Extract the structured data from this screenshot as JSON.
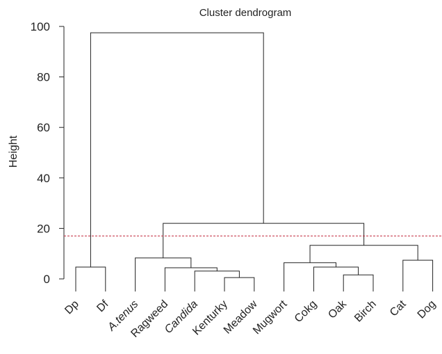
{
  "chart_data": {
    "type": "dendrogram",
    "title": "Cluster dendrogram",
    "ylabel": "Height",
    "ylim": [
      0,
      100
    ],
    "yticks": [
      0,
      20,
      40,
      60,
      80,
      100
    ],
    "leaves": [
      {
        "label": "Dp",
        "italic": false
      },
      {
        "label": "Df",
        "italic": false
      },
      {
        "label": "A.tenus",
        "italic": true
      },
      {
        "label": "Ragweed",
        "italic": false
      },
      {
        "label": "Candida",
        "italic": true
      },
      {
        "label": "Kenturky",
        "italic": false
      },
      {
        "label": "Meadow",
        "italic": false
      },
      {
        "label": "Mugwort",
        "italic": false
      },
      {
        "label": "Cokg",
        "italic": false
      },
      {
        "label": "Oak",
        "italic": false
      },
      {
        "label": "Birch",
        "italic": false
      },
      {
        "label": "Cat",
        "italic": false
      },
      {
        "label": "Dog",
        "italic": false
      }
    ],
    "merges": [
      {
        "left": "L0",
        "right": "L1",
        "height": 4.7
      },
      {
        "left": "L5",
        "right": "L6",
        "height": 0.5
      },
      {
        "left": "L4",
        "right": "M1",
        "height": 3.1
      },
      {
        "left": "L3",
        "right": "M2",
        "height": 4.4
      },
      {
        "left": "L2",
        "right": "M3",
        "height": 8.3
      },
      {
        "left": "L9",
        "right": "L10",
        "height": 1.6
      },
      {
        "left": "L8",
        "right": "M5",
        "height": 4.7
      },
      {
        "left": "L7",
        "right": "M6",
        "height": 6.4
      },
      {
        "left": "L11",
        "right": "L12",
        "height": 7.4
      },
      {
        "left": "M7",
        "right": "M8",
        "height": 13.3
      },
      {
        "left": "M4",
        "right": "M9",
        "height": 22.0
      },
      {
        "left": "M0",
        "right": "M10",
        "height": 97.5
      }
    ],
    "leaf_baseline": -5,
    "cut_line": {
      "height": 17,
      "color": "#c0263a",
      "style": "dashed"
    },
    "colors": {
      "lines": "#222222"
    }
  }
}
